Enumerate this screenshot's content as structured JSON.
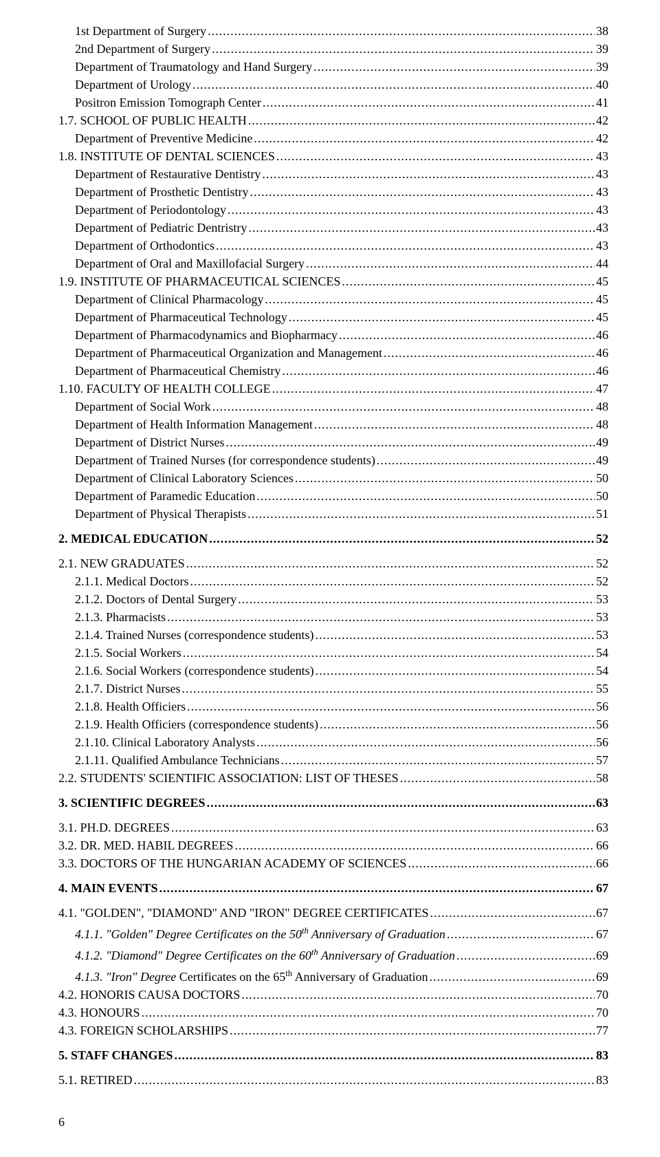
{
  "page_number": "6",
  "entries": [
    {
      "label": "1st Department of Surgery",
      "page": "38",
      "indent": 1
    },
    {
      "label": "2nd Department of Surgery",
      "page": "39",
      "indent": 1
    },
    {
      "label": "Department of Traumatology and Hand Surgery",
      "page": "39",
      "indent": 1
    },
    {
      "label": "Department of Urology",
      "page": "40",
      "indent": 1
    },
    {
      "label": "Positron Emission Tomograph Center",
      "page": "41",
      "indent": 1
    },
    {
      "label": "1.7. SCHOOL OF PUBLIC HEALTH",
      "page": "42",
      "indent": 0,
      "sc": true
    },
    {
      "label": "Department of Preventive Medicine",
      "page": "42",
      "indent": 1
    },
    {
      "label": "1.8. INSTITUTE OF DENTAL SCIENCES",
      "page": "43",
      "indent": 0,
      "sc": true
    },
    {
      "label": "Department of Restaurative Dentistry",
      "page": "43",
      "indent": 1
    },
    {
      "label": "Department of Prosthetic Dentistry",
      "page": "43",
      "indent": 1
    },
    {
      "label": "Department of Periodontology",
      "page": "43",
      "indent": 1
    },
    {
      "label": "Department of Pediatric Dentristry",
      "page": "43",
      "indent": 1
    },
    {
      "label": "Department of Orthodontics",
      "page": "43",
      "indent": 1
    },
    {
      "label": "Department of Oral and Maxillofacial Surgery",
      "page": "44",
      "indent": 1
    },
    {
      "label": "1.9. INSTITUTE OF PHARMACEUTICAL SCIENCES",
      "page": "45",
      "indent": 0,
      "sc": true
    },
    {
      "label": "Department of Clinical Pharmacology",
      "page": "45",
      "indent": 1
    },
    {
      "label": "Department of Pharmaceutical Technology",
      "page": "45",
      "indent": 1
    },
    {
      "label": "Department of Pharmacodynamics and Biopharmacy",
      "page": "46",
      "indent": 1
    },
    {
      "label": "Department of Pharmaceutical Organization and Management",
      "page": "46",
      "indent": 1
    },
    {
      "label": "Department of Pharmaceutical Chemistry",
      "page": "46",
      "indent": 1
    },
    {
      "label": "1.10. FACULTY OF HEALTH COLLEGE",
      "page": "47",
      "indent": 0,
      "sc": true
    },
    {
      "label": "Department of Social Work",
      "page": "48",
      "indent": 1
    },
    {
      "label": "Department of Health Information Management",
      "page": "48",
      "indent": 1
    },
    {
      "label": "Department of District Nurses",
      "page": "49",
      "indent": 1
    },
    {
      "label": "Department of Trained Nurses (for correspondence students)",
      "page": "49",
      "indent": 1
    },
    {
      "label": "Department of Clinical Laboratory Sciences",
      "page": "50",
      "indent": 1
    },
    {
      "label": "Department of Paramedic Education",
      "page": "50",
      "indent": 1
    },
    {
      "label": "Department of Physical Therapists",
      "page": "51",
      "indent": 1
    },
    {
      "gap": true
    },
    {
      "label": "2. MEDICAL EDUCATION",
      "page": "52",
      "indent": 0,
      "bold": true
    },
    {
      "gap": true
    },
    {
      "label": "2.1. NEW GRADUATES",
      "page": "52",
      "indent": 0,
      "sc": true
    },
    {
      "label": "2.1.1. Medical Doctors",
      "page": "52",
      "indent": 1
    },
    {
      "label": "2.1.2. Doctors of Dental Surgery",
      "page": "53",
      "indent": 1
    },
    {
      "label": "2.1.3. Pharmacists",
      "page": "53",
      "indent": 1
    },
    {
      "label": "2.1.4. Trained Nurses (correspondence students)",
      "page": "53",
      "indent": 1
    },
    {
      "label": "2.1.5. Social Workers",
      "page": "54",
      "indent": 1
    },
    {
      "label": "2.1.6. Social Workers (correspondence students)",
      "page": "54",
      "indent": 1
    },
    {
      "label": "2.1.7. District Nurses",
      "page": "55",
      "indent": 1
    },
    {
      "label": "2.1.8. Health Officiers",
      "page": "56",
      "indent": 1
    },
    {
      "label": "2.1.9. Health Officiers (correspondence students)",
      "page": "56",
      "indent": 1
    },
    {
      "label": "2.1.10. Clinical Laboratory Analysts",
      "page": "56",
      "indent": 1
    },
    {
      "label": "2.1.11. Qualified Ambulance Technicians",
      "page": "57",
      "indent": 1
    },
    {
      "label": "2.2. STUDENTS' SCIENTIFIC ASSOCIATION: LIST OF THESES",
      "page": "58",
      "indent": 0,
      "sc": true
    },
    {
      "gap": true
    },
    {
      "label": "3. SCIENTIFIC DEGREES",
      "page": "63",
      "indent": 0,
      "bold": true
    },
    {
      "gap": true
    },
    {
      "label": "3.1. PH.D. DEGREES",
      "page": "63",
      "indent": 0,
      "sc": true
    },
    {
      "label": "3.2. DR. MED. HABIL DEGREES",
      "page": "66",
      "indent": 0,
      "sc": true
    },
    {
      "label": "3.3. DOCTORS OF THE HUNGARIAN ACADEMY OF SCIENCES",
      "page": "66",
      "indent": 0,
      "sc": true
    },
    {
      "gap": true
    },
    {
      "label": "4. MAIN EVENTS",
      "page": "67",
      "indent": 0,
      "bold": true
    },
    {
      "gap": true
    },
    {
      "label": "4.1. \"GOLDEN\", \"DIAMOND\" AND \"IRON\" DEGREE CERTIFICATES",
      "page": "67",
      "indent": 0,
      "sc": true
    },
    {
      "label_html": "<i>4.1.1. \"Golden\" Degree Certificates on the 50<sup>th</sup> Anniversary of Graduation</i>",
      "page": "67",
      "indent": 1
    },
    {
      "label_html": "<i>4.1.2. \"Diamond\" Degree Certificates on the 60<sup>th</sup> Anniversary of Graduation</i>",
      "page": "69",
      "indent": 1
    },
    {
      "label_html": "<i>4.1.3. \"Iron\" Degree</i> Certificates on the 65<sup>th</sup> Anniversary of Graduation",
      "page": "69",
      "indent": 1
    },
    {
      "label": "4.2. HONORIS CAUSA DOCTORS",
      "page": "70",
      "indent": 0,
      "sc": true
    },
    {
      "label": "4.3. HONOURS",
      "page": "70",
      "indent": 0,
      "sc": true
    },
    {
      "label": "4.3. FOREIGN SCHOLARSHIPS",
      "page": "77",
      "indent": 0,
      "sc": true
    },
    {
      "gap": true
    },
    {
      "label": "5. STAFF CHANGES",
      "page": "83",
      "indent": 0,
      "bold": true
    },
    {
      "gap": true
    },
    {
      "label": "5.1. RETIRED",
      "page": "83",
      "indent": 0,
      "sc": true
    }
  ]
}
